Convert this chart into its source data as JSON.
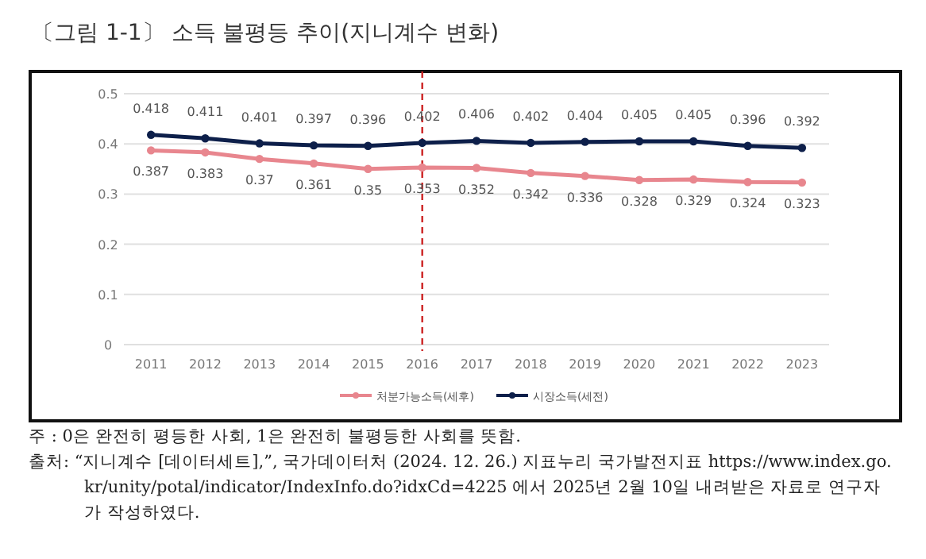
{
  "chart_data": {
    "type": "line",
    "title": "〔그림 1-1〕 소득 불평등 추이(지니계수 변화)",
    "categories": [
      "2011",
      "2012",
      "2013",
      "2014",
      "2015",
      "2016",
      "2017",
      "2018",
      "2019",
      "2020",
      "2021",
      "2022",
      "2023"
    ],
    "series": [
      {
        "name": "처분가능소득(세후)",
        "color": "#e8868e",
        "values": [
          0.387,
          0.383,
          0.37,
          0.361,
          0.35,
          0.353,
          0.352,
          0.342,
          0.336,
          0.328,
          0.329,
          0.324,
          0.323
        ]
      },
      {
        "name": "시장소득(세전)",
        "color": "#0d1f4a",
        "values": [
          0.418,
          0.411,
          0.401,
          0.397,
          0.396,
          0.402,
          0.406,
          0.402,
          0.404,
          0.405,
          0.405,
          0.396,
          0.392
        ]
      }
    ],
    "ylim": [
      0,
      0.5
    ],
    "yticks": [
      0,
      0.1,
      0.2,
      0.3,
      0.4,
      0.5
    ],
    "ref_lines": [
      {
        "axis": "x",
        "value": "2016",
        "color": "#cc2222",
        "line_style": "dashed"
      }
    ],
    "grid": "y",
    "legend": "bottom",
    "marker": "circle",
    "line_style": "solid",
    "data_labels": true,
    "annotations": [
      "주 : 0은 완전히 평등한 사회, 1은 완전히 불평등한 사회를 뜻함.",
      "출처: “지니계수 [데이터세트],”, 국가데이터처 (2024. 12. 26.) 지표누리 국가발전지표 https://www.index.go.kr/unity/potal/indicator/IndexInfo.do?idxCd=4225 에서 2025년 2월 10일 내려받은 자료로 연구자가 작성하였다."
    ]
  }
}
